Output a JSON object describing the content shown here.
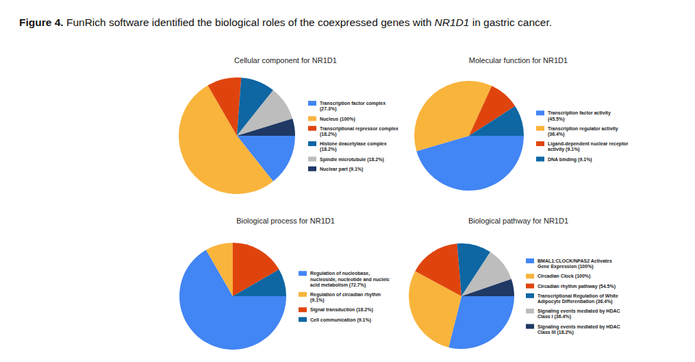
{
  "caption": {
    "label": "Figure 4.",
    "text_before": "FunRich software identified the biological roles of the coexpressed genes with ",
    "gene": "NR1D1",
    "text_after": " in gastric cancer."
  },
  "chart_data": [
    {
      "type": "pie",
      "title": "Cellular component for NR1D1",
      "categories": [
        "Transcription factor complex (27.3%)",
        "Nucleus (100%)",
        "Transcriptional repressor complex (18.2%)",
        "Histone deacetylase complex (18.2%)",
        "Spindle microtubule (18.2%)",
        "Nuclear part (9.1%)"
      ],
      "values": [
        27.3,
        100,
        18.2,
        18.2,
        18.2,
        9.1
      ],
      "colors": [
        "#4285f4",
        "#f9b43c",
        "#e0440e",
        "#0e66a3",
        "#bdbdbd",
        "#1f3864"
      ]
    },
    {
      "type": "pie",
      "title": "Molecular function for NR1D1",
      "categories": [
        "Transcription factor activity (45.5%)",
        "Transcription regulator activity (36.4%)",
        "Ligand-dependent nuclear receptor activity (9.1%)",
        "DNA binding (9.1%)"
      ],
      "values": [
        45.5,
        36.4,
        9.1,
        9.1
      ],
      "colors": [
        "#4285f4",
        "#f9b43c",
        "#e0440e",
        "#0e66a3"
      ]
    },
    {
      "type": "pie",
      "title": "Biological process for NR1D1",
      "categories": [
        "Regulation of nucleobase, nucleoside, nucleotide and nucleic acid metabolism (72.7%)",
        "Regulation of circadian rhythm (9.1%)",
        "Signal transduction (18.2%)",
        "Cell communication (9.1%)"
      ],
      "values": [
        72.7,
        9.1,
        18.2,
        9.1
      ],
      "colors": [
        "#4285f4",
        "#f9b43c",
        "#e0440e",
        "#0e66a3"
      ]
    },
    {
      "type": "pie",
      "title": "Biological pathway for NR1D1",
      "categories": [
        "BMAL1:CLOCK/NPAS2 Activates Gene Expression (100%)",
        "Circadian Clock (100%)",
        "Circadian rhythm pathway (54.5%)",
        "Transcriptional Regulation of White Adipocyte Differentiation (36.4%)",
        "Signaling events mediated by HDAC Class I (36.4%)",
        "Signaling events mediated by HDAC Class III (18.2%)"
      ],
      "values": [
        100,
        100,
        54.5,
        36.4,
        36.4,
        18.2
      ],
      "colors": [
        "#4285f4",
        "#f9b43c",
        "#e0440e",
        "#0e66a3",
        "#bdbdbd",
        "#1f3864"
      ]
    }
  ]
}
